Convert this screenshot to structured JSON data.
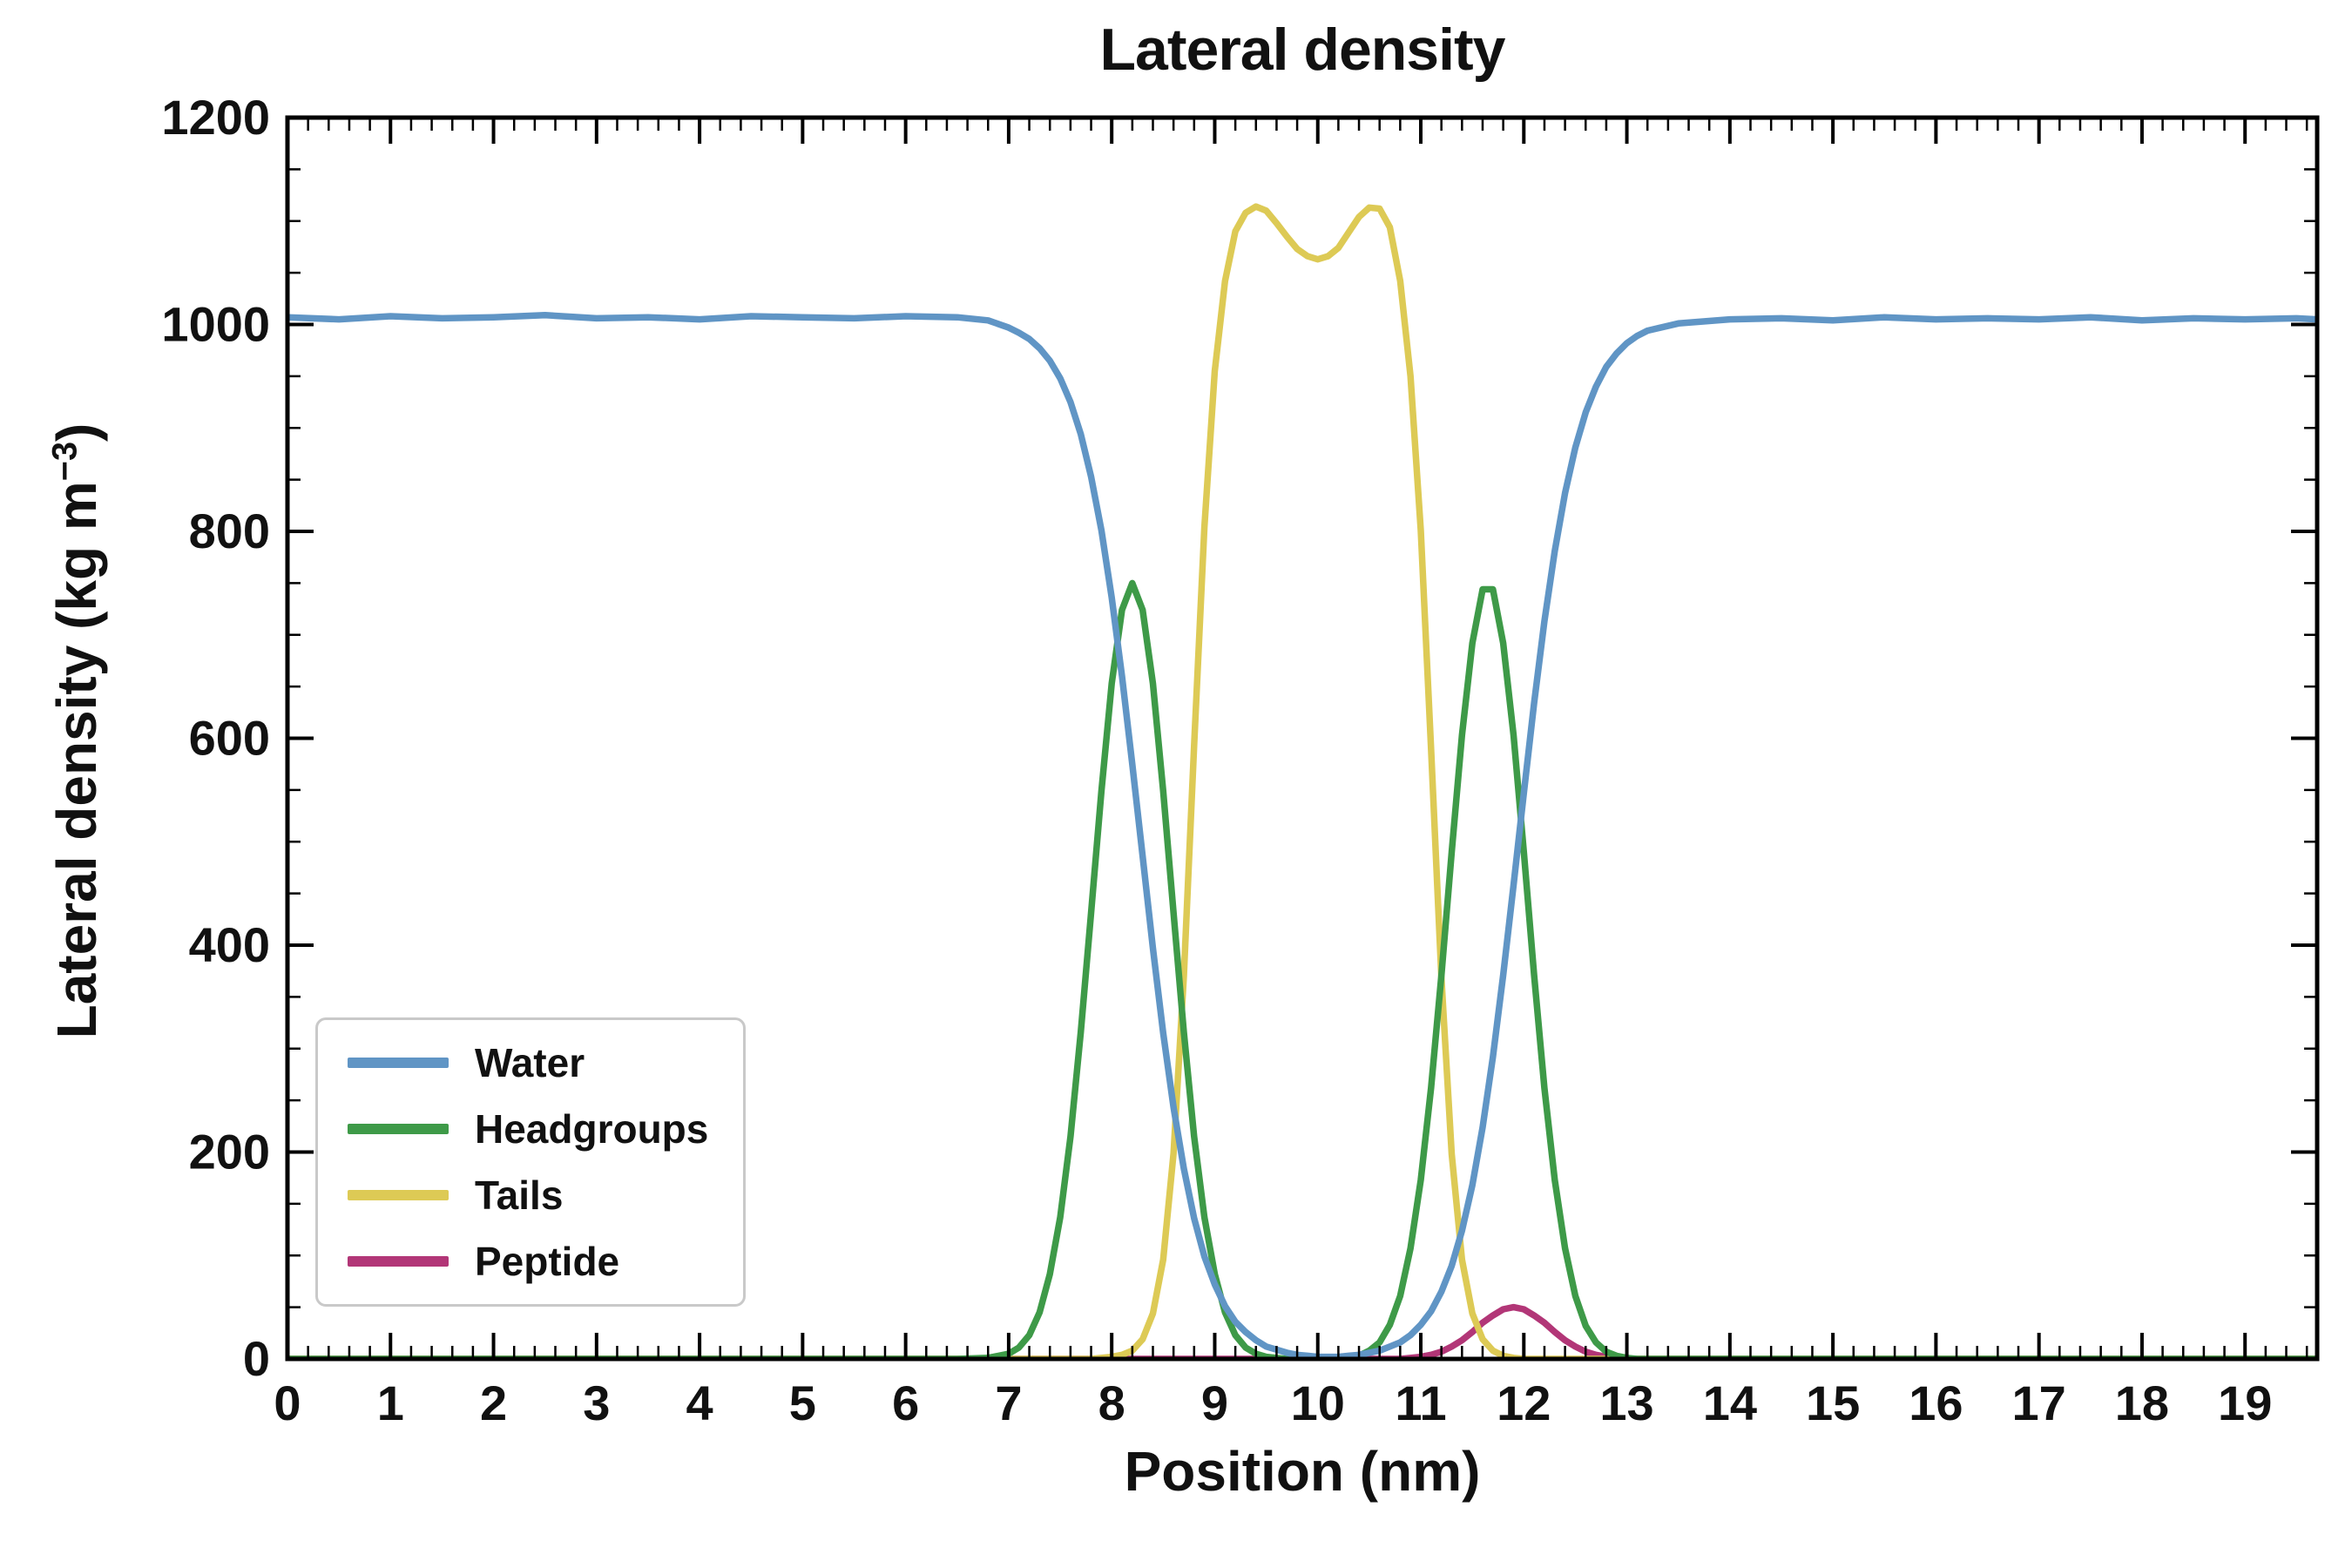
{
  "chart": {
    "title": "Lateral density",
    "xlabel": "Position (nm)",
    "ylabel_prefix": "Lateral density (kg m",
    "ylabel_sup": "−3",
    "ylabel_suffix": ")"
  },
  "chart_data": {
    "type": "line",
    "title": "Lateral density",
    "xlabel": "Position (nm)",
    "ylabel": "Lateral density (kg m^-3)",
    "xlim": [
      0,
      19.7
    ],
    "ylim": [
      0,
      1200
    ],
    "x_major_ticks": [
      0,
      1,
      2,
      3,
      4,
      5,
      6,
      7,
      8,
      9,
      10,
      11,
      12,
      13,
      14,
      15,
      16,
      17,
      18,
      19
    ],
    "x_minor_step": 0.2,
    "y_major_ticks": [
      0,
      200,
      400,
      600,
      800,
      1000,
      1200
    ],
    "y_minor_step": 50,
    "grid": false,
    "legend_position": "lower left",
    "x": [
      0,
      0.5,
      1,
      1.5,
      2,
      2.5,
      3,
      3.5,
      4,
      4.5,
      5,
      5.5,
      6,
      6.5,
      6.8,
      7,
      7.1,
      7.2,
      7.3,
      7.4,
      7.5,
      7.6,
      7.7,
      7.8,
      7.9,
      8,
      8.1,
      8.2,
      8.3,
      8.4,
      8.5,
      8.6,
      8.7,
      8.8,
      8.9,
      9,
      9.1,
      9.2,
      9.3,
      9.4,
      9.5,
      9.6,
      9.7,
      9.8,
      9.9,
      10,
      10.1,
      10.2,
      10.3,
      10.4,
      10.5,
      10.6,
      10.7,
      10.8,
      10.9,
      11,
      11.1,
      11.2,
      11.3,
      11.4,
      11.5,
      11.6,
      11.7,
      11.8,
      11.9,
      12,
      12.1,
      12.2,
      12.3,
      12.4,
      12.5,
      12.6,
      12.7,
      12.8,
      12.9,
      13,
      13.1,
      13.2,
      13.5,
      14,
      14.5,
      15,
      15.5,
      16,
      16.5,
      17,
      17.5,
      18,
      18.5,
      19,
      19.5,
      19.7
    ],
    "series": [
      {
        "name": "Water",
        "color": "#6095c5",
        "values": [
          1007,
          1005,
          1008,
          1006,
          1007,
          1009,
          1006,
          1007,
          1005,
          1008,
          1007,
          1006,
          1008,
          1007,
          1004,
          997,
          992,
          986,
          977,
          965,
          948,
          925,
          894,
          853,
          801,
          736,
          660,
          575,
          486,
          397,
          315,
          243,
          184,
          136,
          99,
          72,
          51,
          36,
          26,
          18,
          12,
          9,
          6,
          4,
          3,
          2,
          2,
          2,
          3,
          4,
          6,
          8,
          12,
          16,
          23,
          33,
          46,
          65,
          90,
          124,
          168,
          224,
          292,
          371,
          458,
          547,
          634,
          713,
          781,
          837,
          881,
          915,
          940,
          959,
          972,
          982,
          989,
          994,
          1001,
          1005,
          1006,
          1004,
          1007,
          1005,
          1006,
          1005,
          1007,
          1004,
          1006,
          1005,
          1006,
          1005
        ]
      },
      {
        "name": "Headgroups",
        "color": "#3e9a48",
        "values": [
          0,
          0,
          0,
          0,
          0,
          0,
          0,
          0,
          0,
          0,
          0,
          0,
          0,
          0,
          1,
          5,
          11,
          23,
          45,
          82,
          137,
          215,
          316,
          431,
          549,
          653,
          724,
          750,
          724,
          653,
          549,
          431,
          316,
          215,
          137,
          82,
          45,
          23,
          11,
          5,
          2,
          1,
          0,
          0,
          0,
          0,
          0,
          0,
          1,
          3,
          8,
          16,
          33,
          61,
          107,
          173,
          262,
          371,
          490,
          603,
          692,
          744,
          744,
          692,
          603,
          490,
          371,
          262,
          173,
          107,
          61,
          32,
          16,
          7,
          3,
          1,
          0,
          0,
          0,
          0,
          0,
          0,
          0,
          0,
          0,
          0,
          0,
          0,
          0,
          0,
          0,
          0
        ]
      },
      {
        "name": "Tails",
        "color": "#ddca55",
        "values": [
          0,
          0,
          0,
          0,
          0,
          0,
          0,
          0,
          0,
          0,
          0,
          0,
          0,
          0,
          0,
          0,
          0,
          0,
          0,
          0,
          0,
          0,
          0,
          0,
          1,
          2,
          4,
          8,
          19,
          44,
          96,
          199,
          370,
          593,
          804,
          955,
          1042,
          1090,
          1108,
          1114,
          1110,
          1098,
          1085,
          1073,
          1066,
          1063,
          1066,
          1074,
          1089,
          1104,
          1113,
          1112,
          1094,
          1042,
          950,
          801,
          590,
          368,
          198,
          96,
          44,
          19,
          8,
          3,
          1,
          0,
          0,
          0,
          0,
          0,
          0,
          0,
          0,
          0,
          0,
          0,
          0,
          0,
          0,
          0,
          0,
          0,
          0,
          0,
          0,
          0,
          0,
          0,
          0,
          0,
          0,
          0
        ]
      },
      {
        "name": "Peptide",
        "color": "#b23677",
        "values": [
          0,
          0,
          0,
          0,
          0,
          0,
          0,
          0,
          0,
          0,
          0,
          0,
          0,
          0,
          0,
          0,
          0,
          0,
          0,
          0,
          0,
          0,
          0,
          0,
          0,
          0,
          0,
          0,
          0,
          0,
          0,
          0,
          0,
          0,
          0,
          0,
          0,
          0,
          0,
          0,
          0,
          0,
          0,
          0,
          0,
          0,
          0,
          0,
          0,
          0,
          0,
          0,
          0,
          0,
          1,
          2,
          4,
          7,
          12,
          18,
          26,
          35,
          42,
          48,
          50,
          48,
          42,
          35,
          26,
          18,
          12,
          7,
          4,
          2,
          1,
          0,
          0,
          0,
          0,
          0,
          0,
          0,
          0,
          0,
          0,
          0,
          0,
          0,
          0,
          0,
          0,
          0
        ]
      }
    ]
  }
}
